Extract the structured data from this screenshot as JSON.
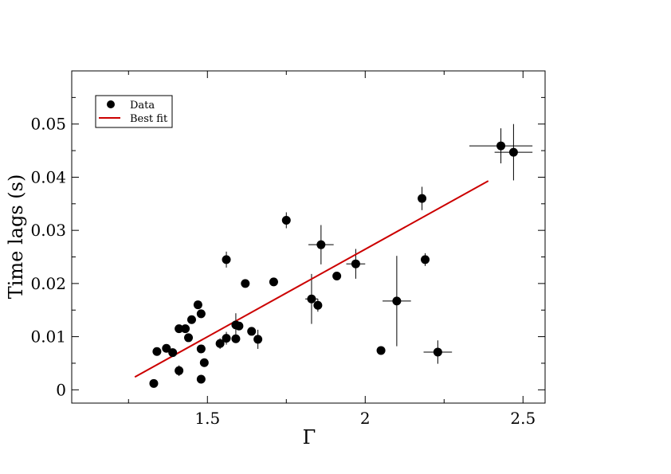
{
  "chart_data": {
    "type": "scatter",
    "xlabel": "Γ",
    "ylabel": "Time lags (s)",
    "xlim": [
      1.07,
      2.57
    ],
    "ylim": [
      -0.0025,
      0.06
    ],
    "x_ticks": [
      1.5,
      2,
      2.5
    ],
    "x_tick_labels": [
      "1.5",
      "2",
      "2.5"
    ],
    "y_ticks": [
      0,
      0.01,
      0.02,
      0.03,
      0.04,
      0.05
    ],
    "y_tick_labels": [
      "0",
      "0.01",
      "0.02",
      "0.03",
      "0.04",
      "0.05"
    ],
    "grid": false,
    "legend": {
      "position": "top-left",
      "entries": [
        {
          "label": "Data",
          "marker": "circle",
          "color": "#000000"
        },
        {
          "label": "Best fit",
          "marker": "line",
          "color": "#cc0000"
        }
      ]
    },
    "series": [
      {
        "name": "Data",
        "color": "#000000",
        "points": [
          {
            "x": 1.33,
            "y": 0.0012,
            "xerr": 0,
            "yerr": 0
          },
          {
            "x": 1.34,
            "y": 0.0072,
            "xerr": 0,
            "yerr": 0
          },
          {
            "x": 1.37,
            "y": 0.0078,
            "xerr": 0,
            "yerr": 0
          },
          {
            "x": 1.39,
            "y": 0.007,
            "xerr": 0,
            "yerr": 0
          },
          {
            "x": 1.41,
            "y": 0.0036,
            "xerr": 0,
            "yerr": 0.001
          },
          {
            "x": 1.41,
            "y": 0.0115,
            "xerr": 0,
            "yerr": 0
          },
          {
            "x": 1.43,
            "y": 0.0115,
            "xerr": 0,
            "yerr": 0
          },
          {
            "x": 1.44,
            "y": 0.0098,
            "xerr": 0,
            "yerr": 0
          },
          {
            "x": 1.45,
            "y": 0.0132,
            "xerr": 0,
            "yerr": 0
          },
          {
            "x": 1.47,
            "y": 0.016,
            "xerr": 0,
            "yerr": 0
          },
          {
            "x": 1.48,
            "y": 0.0143,
            "xerr": 0,
            "yerr": 0
          },
          {
            "x": 1.48,
            "y": 0.0077,
            "xerr": 0,
            "yerr": 0
          },
          {
            "x": 1.48,
            "y": 0.002,
            "xerr": 0,
            "yerr": 0
          },
          {
            "x": 1.49,
            "y": 0.0051,
            "xerr": 0,
            "yerr": 0
          },
          {
            "x": 1.54,
            "y": 0.0087,
            "xerr": 0,
            "yerr": 0.001
          },
          {
            "x": 1.56,
            "y": 0.0097,
            "xerr": 0,
            "yerr": 0.0012
          },
          {
            "x": 1.56,
            "y": 0.0245,
            "xerr": 0.01,
            "yerr": 0.0015
          },
          {
            "x": 1.59,
            "y": 0.0122,
            "xerr": 0,
            "yerr": 0.0022
          },
          {
            "x": 1.59,
            "y": 0.0096,
            "xerr": 0,
            "yerr": 0
          },
          {
            "x": 1.6,
            "y": 0.012,
            "xerr": 0,
            "yerr": 0
          },
          {
            "x": 1.62,
            "y": 0.02,
            "xerr": 0,
            "yerr": 0
          },
          {
            "x": 1.64,
            "y": 0.011,
            "xerr": 0,
            "yerr": 0
          },
          {
            "x": 1.66,
            "y": 0.0095,
            "xerr": 0,
            "yerr": 0.0018
          },
          {
            "x": 1.71,
            "y": 0.0203,
            "xerr": 0,
            "yerr": 0
          },
          {
            "x": 1.75,
            "y": 0.0319,
            "xerr": 0,
            "yerr": 0.0015
          },
          {
            "x": 1.83,
            "y": 0.0171,
            "xerr": 0.02,
            "yerr": 0.0047
          },
          {
            "x": 1.85,
            "y": 0.0159,
            "xerr": 0,
            "yerr": 0.0012
          },
          {
            "x": 1.86,
            "y": 0.0273,
            "xerr": 0.04,
            "yerr": 0.0037
          },
          {
            "x": 1.91,
            "y": 0.0214,
            "xerr": 0,
            "yerr": 0
          },
          {
            "x": 1.97,
            "y": 0.0237,
            "xerr": 0.03,
            "yerr": 0.0028
          },
          {
            "x": 2.05,
            "y": 0.0074,
            "xerr": 0,
            "yerr": 0
          },
          {
            "x": 2.1,
            "y": 0.0167,
            "xerr": 0.045,
            "yerr": 0.0085
          },
          {
            "x": 2.18,
            "y": 0.036,
            "xerr": 0,
            "yerr": 0.0022
          },
          {
            "x": 2.19,
            "y": 0.0245,
            "xerr": 0,
            "yerr": 0.0012
          },
          {
            "x": 2.23,
            "y": 0.0071,
            "xerr": 0.045,
            "yerr": 0.0022
          },
          {
            "x": 2.43,
            "y": 0.0459,
            "xerr": 0.1,
            "yerr": 0.0033
          },
          {
            "x": 2.47,
            "y": 0.0447,
            "xerr": 0.06,
            "yerr": 0.0053
          }
        ]
      },
      {
        "name": "Best fit",
        "color": "#cc0000",
        "x": [
          1.27,
          2.39
        ],
        "y": [
          0.0024,
          0.0393
        ]
      }
    ]
  }
}
